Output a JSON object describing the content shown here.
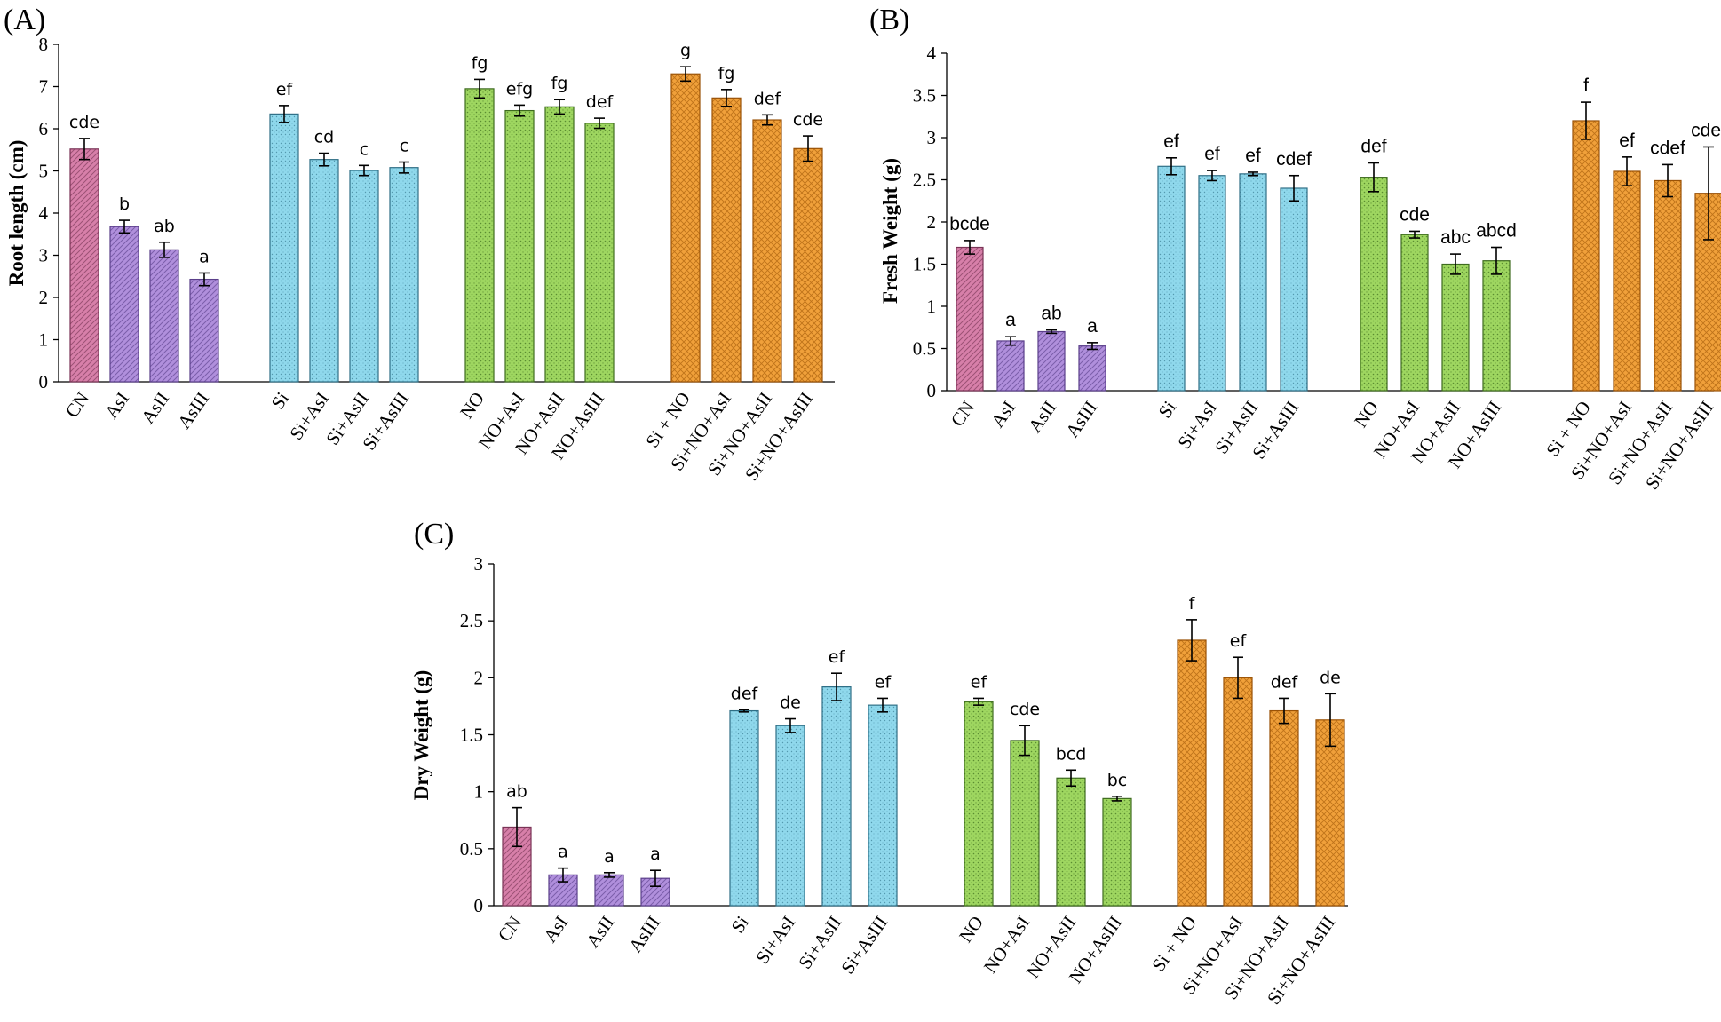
{
  "chart_data": [
    {
      "type": "bar",
      "panel": "(A)",
      "title": "",
      "xlabel": "",
      "ylabel": "Root length (cm)",
      "ylim": [
        0,
        8
      ],
      "yticks": [
        "0",
        "1",
        "2",
        "3",
        "4",
        "5",
        "6",
        "7",
        "8"
      ],
      "categories": [
        "CN",
        "AsI",
        "AsII",
        "AsIII",
        "Si",
        "Si+AsI",
        "Si+AsII",
        "Si+AsIII",
        "NO",
        "NO+AsI",
        "NO+AsII",
        "NO+AsIII",
        "Si + NO",
        "Si+NO+AsI",
        "Si+NO+AsII",
        "Si+NO+AsIII"
      ],
      "values": [
        5.52,
        3.68,
        3.13,
        2.43,
        6.35,
        5.27,
        5.01,
        5.08,
        6.95,
        6.43,
        6.52,
        6.13,
        7.3,
        6.73,
        6.21,
        5.53
      ],
      "errors": [
        0.25,
        0.15,
        0.18,
        0.15,
        0.2,
        0.15,
        0.12,
        0.13,
        0.22,
        0.13,
        0.17,
        0.12,
        0.17,
        0.2,
        0.12,
        0.3
      ],
      "letters": [
        "cde",
        "b",
        "ab",
        "a",
        "ef",
        "cd",
        "c",
        "c",
        "fg",
        "efg",
        "fg",
        "def",
        "g",
        "fg",
        "def",
        "cde"
      ]
    },
    {
      "type": "bar",
      "panel": "(B)",
      "title": "",
      "xlabel": "",
      "ylabel": "Fresh Weight (g)",
      "ylim": [
        0,
        4
      ],
      "yticks": [
        "0",
        "0.5",
        "1",
        "1.5",
        "2",
        "2.5",
        "3",
        "3.5",
        "4"
      ],
      "categories": [
        "CN",
        "AsI",
        "AsII",
        "AsIII",
        "Si",
        "Si+AsI",
        "Si+AsII",
        "Si+AsIII",
        "NO",
        "NO+AsI",
        "NO+AsII",
        "NO+AsIII",
        "Si + NO",
        "Si+NO+AsI",
        "Si+NO+AsII",
        "Si+NO+AsIII"
      ],
      "values": [
        1.7,
        0.59,
        0.7,
        0.53,
        2.66,
        2.55,
        2.57,
        2.4,
        2.53,
        1.85,
        1.5,
        1.54,
        3.2,
        2.6,
        2.49,
        2.34
      ],
      "errors": [
        0.08,
        0.05,
        0.02,
        0.04,
        0.1,
        0.06,
        0.02,
        0.15,
        0.17,
        0.04,
        0.12,
        0.16,
        0.22,
        0.17,
        0.19,
        0.55
      ],
      "letters": [
        "bcde",
        "a",
        "ab",
        "a",
        "ef",
        "ef",
        "ef",
        "cdef",
        "def",
        "cde",
        "abc",
        "abcd",
        "f",
        "ef",
        "cdef",
        "cdef"
      ]
    },
    {
      "type": "bar",
      "panel": "(C)",
      "title": "",
      "xlabel": "",
      "ylabel": "Dry Weight (g)",
      "ylim": [
        0,
        3
      ],
      "yticks": [
        "0",
        "0.5",
        "1",
        "1.5",
        "2",
        "2.5",
        "3"
      ],
      "categories": [
        "CN",
        "AsI",
        "AsII",
        "AsIII",
        "Si",
        "Si+AsI",
        "Si+AsII",
        "Si+AsIII",
        "NO",
        "NO+AsI",
        "NO+AsII",
        "NO+AsIII",
        "Si + NO",
        "Si+NO+AsI",
        "Si+NO+AsII",
        "Si+NO+AsIII"
      ],
      "values": [
        0.69,
        0.27,
        0.27,
        0.24,
        1.71,
        1.58,
        1.92,
        1.76,
        1.79,
        1.45,
        1.12,
        0.94,
        2.33,
        2.0,
        1.71,
        1.63
      ],
      "errors": [
        0.17,
        0.06,
        0.02,
        0.07,
        0.01,
        0.06,
        0.12,
        0.06,
        0.03,
        0.13,
        0.07,
        0.02,
        0.18,
        0.18,
        0.11,
        0.23
      ],
      "letters": [
        "ab",
        "a",
        "a",
        "a",
        "def",
        "de",
        "ef",
        "ef",
        "ef",
        "cde",
        "bcd",
        "bc",
        "f",
        "ef",
        "def",
        "de"
      ]
    }
  ],
  "palette": {
    "control": "#d77fa9",
    "arsenic": "#b08fdc",
    "silicon": "#8fd8ec",
    "nitric_oxide": "#9ed660",
    "combined": "#f0a03a"
  }
}
